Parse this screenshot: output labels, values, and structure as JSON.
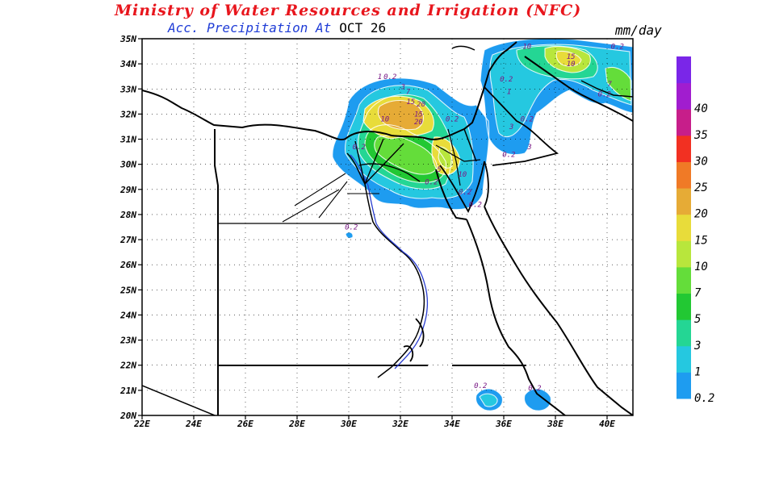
{
  "header": {
    "title": "Ministry of Water Resources and Irrigation (NFC)",
    "subtitle": "Acc. Precipitation  At",
    "date": "OCT 26",
    "unit": "mm/day"
  },
  "map": {
    "lon_labels": [
      "22E",
      "24E",
      "26E",
      "28E",
      "30E",
      "32E",
      "34E",
      "36E",
      "38E",
      "40E"
    ],
    "lat_labels": [
      "20N",
      "21N",
      "22N",
      "23N",
      "24N",
      "25N",
      "26N",
      "27N",
      "28N",
      "29N",
      "30N",
      "31N",
      "32N",
      "33N",
      "34N",
      "35N"
    ],
    "lon_range": [
      22,
      41
    ],
    "lat_range": [
      20,
      35
    ]
  },
  "colorbar": {
    "levels": [
      "0.2",
      "1",
      "3",
      "5",
      "7",
      "10",
      "15",
      "20",
      "25",
      "30",
      "35",
      "40"
    ],
    "colors": [
      "#1e9cf0",
      "#25c8e0",
      "#24d694",
      "#22c833",
      "#64dd3a",
      "#b8e63c",
      "#e8dc3a",
      "#e6ab36",
      "#f07a26",
      "#f23022",
      "#c71e8a",
      "#a11dcf",
      "#7a26e8"
    ]
  },
  "contour_labels": [
    {
      "text": "0.2",
      "lon": 31.6,
      "lat": 33.4
    },
    {
      "text": "1",
      "lon": 31.2,
      "lat": 33.4
    },
    {
      "text": "3",
      "lon": 32.1,
      "lat": 33.0
    },
    {
      "text": "7",
      "lon": 32.3,
      "lat": 32.8
    },
    {
      "text": "15",
      "lon": 32.4,
      "lat": 32.4
    },
    {
      "text": "20",
      "lon": 32.8,
      "lat": 32.3
    },
    {
      "text": "15",
      "lon": 32.7,
      "lat": 31.9
    },
    {
      "text": "20",
      "lon": 32.7,
      "lat": 31.6
    },
    {
      "text": "10",
      "lon": 31.4,
      "lat": 31.7
    },
    {
      "text": "0.2",
      "lon": 34.0,
      "lat": 31.7
    },
    {
      "text": "0.2",
      "lon": 30.4,
      "lat": 30.6
    },
    {
      "text": "5",
      "lon": 33.5,
      "lat": 29.7
    },
    {
      "text": "10",
      "lon": 34.4,
      "lat": 29.5
    },
    {
      "text": "0.2",
      "lon": 33.2,
      "lat": 29.2
    },
    {
      "text": "0.2",
      "lon": 34.5,
      "lat": 28.8
    },
    {
      "text": "0.2",
      "lon": 34.9,
      "lat": 28.3
    },
    {
      "text": "0.2",
      "lon": 30.1,
      "lat": 27.4
    },
    {
      "text": "10",
      "lon": 36.9,
      "lat": 34.6
    },
    {
      "text": "15",
      "lon": 38.6,
      "lat": 34.2
    },
    {
      "text": "10",
      "lon": 38.6,
      "lat": 33.9
    },
    {
      "text": "0.2",
      "lon": 40.4,
      "lat": 34.6
    },
    {
      "text": "0.2",
      "lon": 36.1,
      "lat": 33.3
    },
    {
      "text": "1",
      "lon": 36.2,
      "lat": 32.8
    },
    {
      "text": "0.2",
      "lon": 36.9,
      "lat": 31.7
    },
    {
      "text": "3",
      "lon": 36.3,
      "lat": 31.4
    },
    {
      "text": "3",
      "lon": 37.0,
      "lat": 30.6
    },
    {
      "text": "0.2",
      "lon": 36.2,
      "lat": 30.3
    },
    {
      "text": "0.2",
      "lon": 39.9,
      "lat": 32.7
    },
    {
      "text": "7",
      "lon": 40.1,
      "lat": 33.1
    },
    {
      "text": "0.2",
      "lon": 35.1,
      "lat": 21.1
    },
    {
      "text": "0.2",
      "lon": 37.2,
      "lat": 21.0
    }
  ]
}
